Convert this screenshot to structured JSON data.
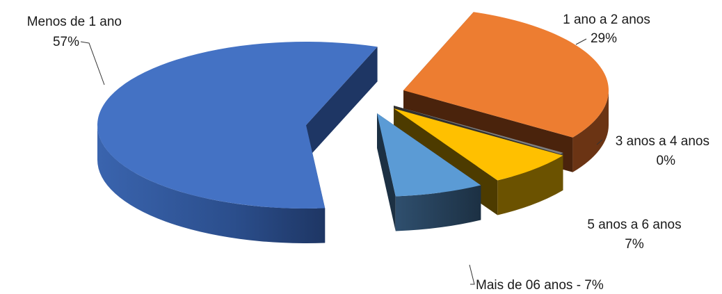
{
  "chart_data": {
    "type": "pie",
    "title": "",
    "slices": [
      {
        "label": "Menos de 1 ano",
        "pct_label": "57%",
        "value": 57,
        "color": "#4472C4",
        "side_color": "#2B4E8C",
        "dark_color": "#1E3664"
      },
      {
        "label": "1 ano  a 2 anos",
        "pct_label": "29%",
        "value": 29,
        "color": "#ED7D31",
        "side_color": "#6B3414",
        "dark_color": "#4A230C"
      },
      {
        "label": "3 anos a 4 anos",
        "pct_label": "0%",
        "value": 0,
        "color": "#7F7F7F",
        "side_color": "#404040",
        "dark_color": "#303030"
      },
      {
        "label": "5 anos a 6 anos",
        "pct_label": "7%",
        "value": 7,
        "color": "#FFC000",
        "side_color": "#6B5200",
        "dark_color": "#4D3B00"
      },
      {
        "label": "Mais de 06 anos - 7%",
        "pct_label": "",
        "value": 7,
        "color": "#5B9BD5",
        "side_color": "#2A4660",
        "dark_color": "#1C3043"
      }
    ],
    "style": "3d-exploded",
    "legend": "none"
  }
}
